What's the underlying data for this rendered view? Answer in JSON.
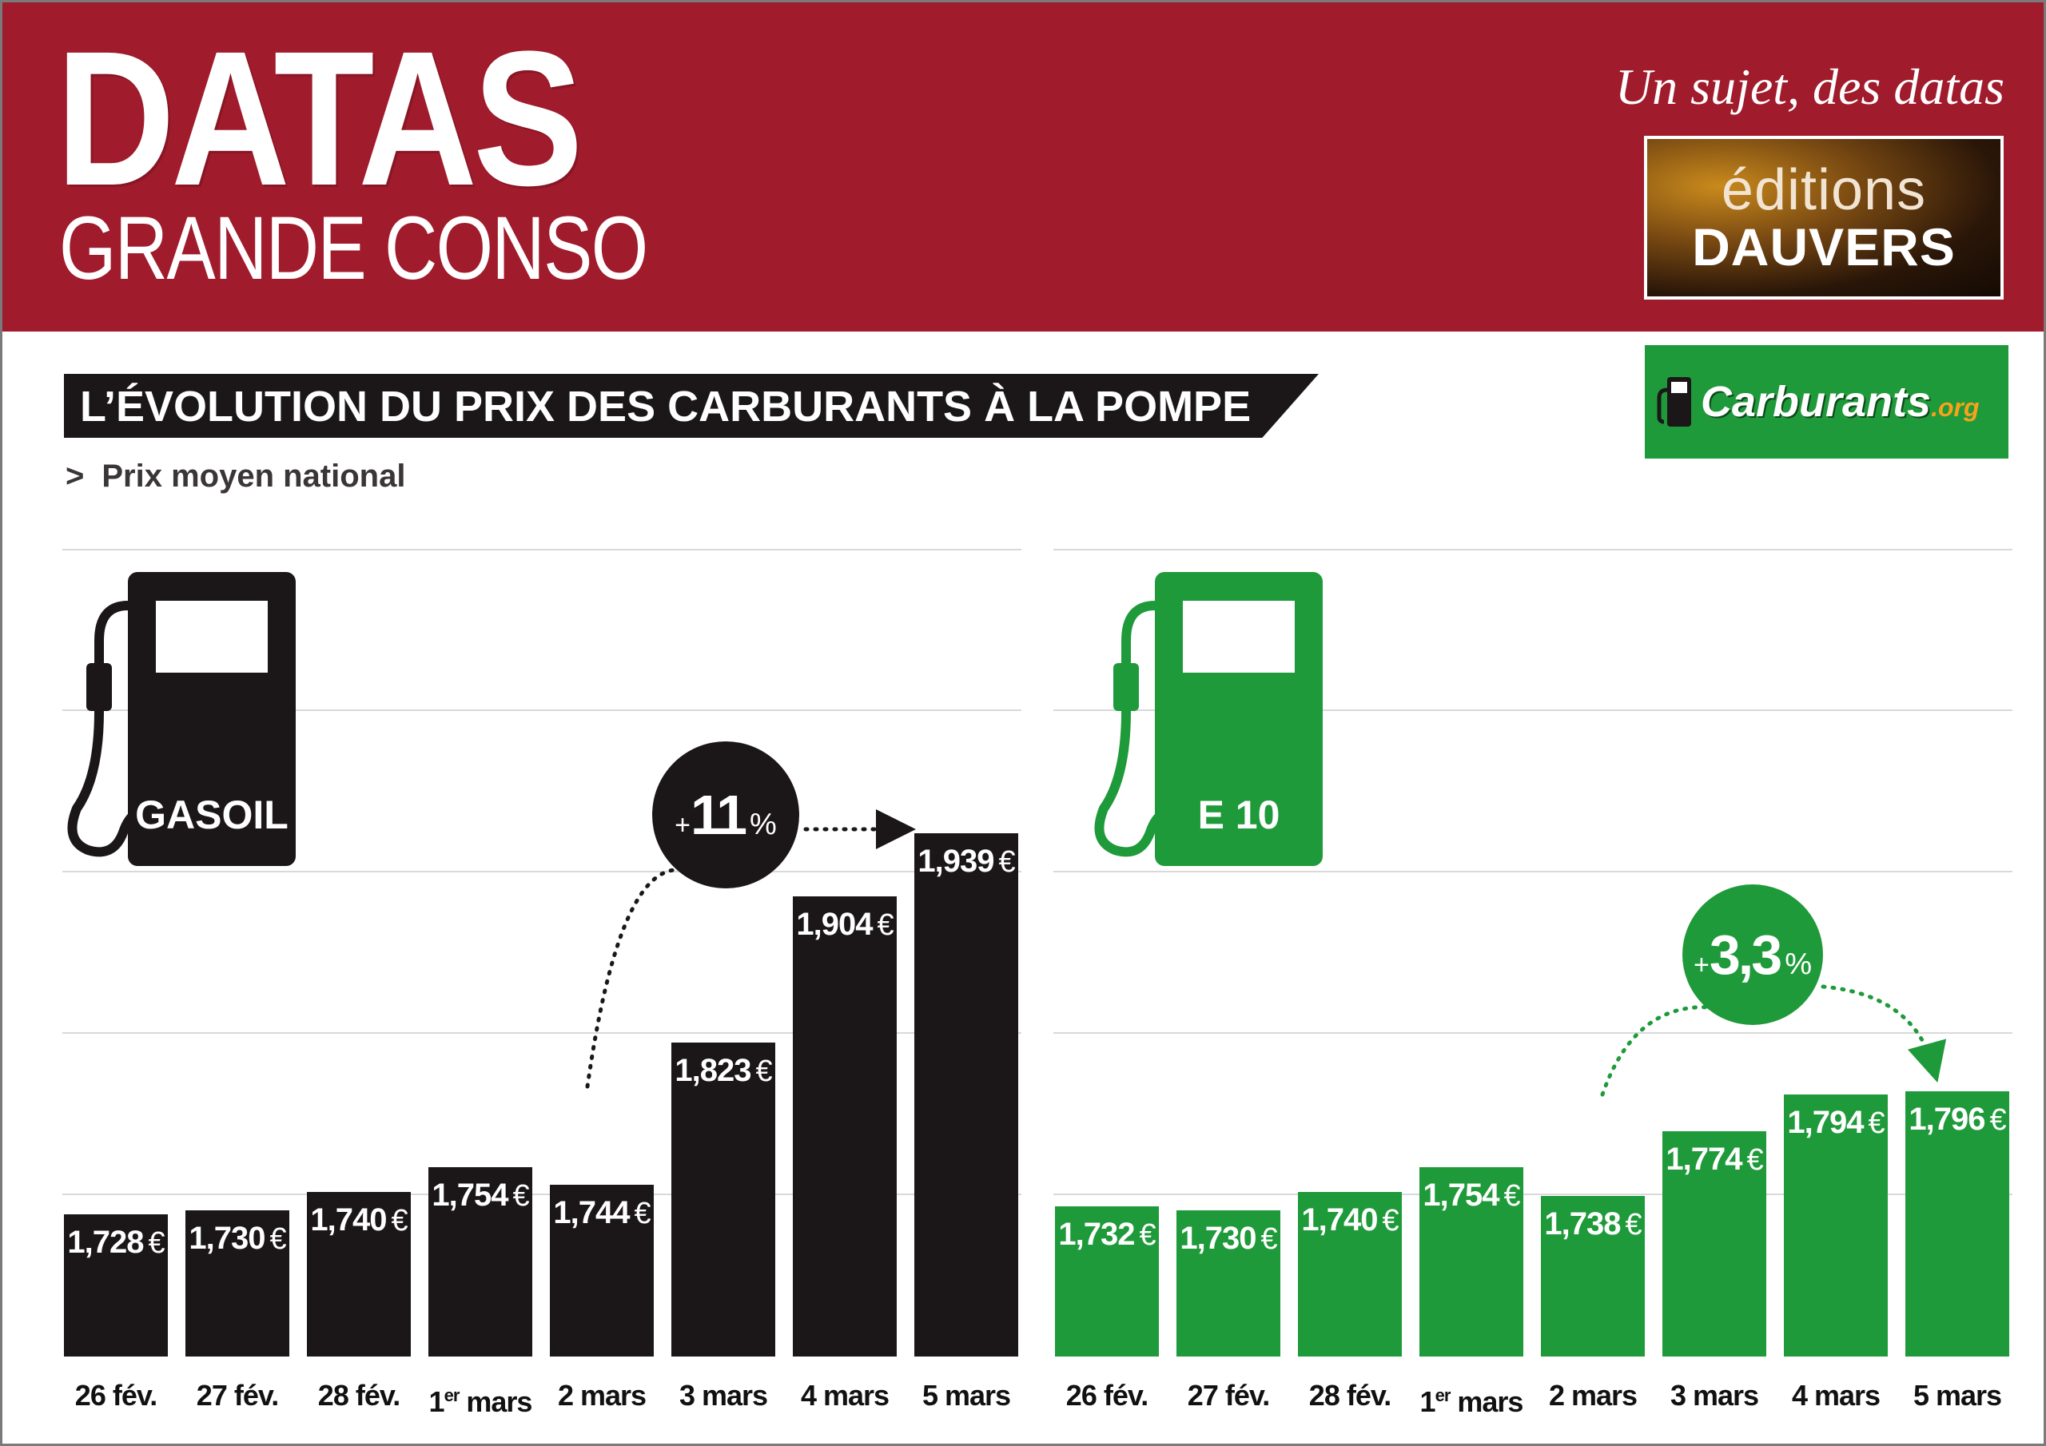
{
  "header": {
    "brand": "DATAS",
    "brand_sub": "GRANDE CONSO",
    "tagline": "Un sujet, des datas",
    "publisher_line1": "éditions",
    "publisher_line2": "DAUVERS",
    "bg_color": "#a01b2c"
  },
  "title": "L’ÉVOLUTION DU PRIX DES CARBURANTS À LA POMPE",
  "subtitle_arrow": ">",
  "subtitle": "Prix moyen national",
  "source_logo": {
    "name": "Carburants",
    "suffix": ".org",
    "color": "#1f9a3a"
  },
  "chart_data": [
    {
      "type": "bar",
      "series_name": "GASOIL",
      "color": "#1b1718",
      "categories": [
        "26 fév.",
        "27 fév.",
        "28 fév.",
        "1er mars",
        "2 mars",
        "3 mars",
        "4 mars",
        "5 mars"
      ],
      "category_parts": [
        [
          "26 fév.",
          ""
        ],
        [
          "27 fév.",
          ""
        ],
        [
          "28 fév.",
          ""
        ],
        [
          "1",
          "er",
          " mars"
        ],
        [
          "2 mars",
          ""
        ],
        [
          "3 mars",
          ""
        ],
        [
          "4 mars",
          ""
        ],
        [
          "5 mars",
          ""
        ]
      ],
      "values": [
        1.728,
        1.73,
        1.74,
        1.754,
        1.744,
        1.823,
        1.904,
        1.939
      ],
      "labels": [
        "1,728",
        "1,730",
        "1,740",
        "1,754",
        "1,744",
        "1,823",
        "1,904",
        "1,939"
      ],
      "unit": "€",
      "annotation": {
        "sign": "+",
        "value": "11",
        "unit": "%",
        "from_index": 4,
        "to_index": 7
      }
    },
    {
      "type": "bar",
      "series_name": "E 10",
      "color": "#1f9a3a",
      "categories": [
        "26 fév.",
        "27 fév.",
        "28 fév.",
        "1er mars",
        "2 mars",
        "3 mars",
        "4 mars",
        "5 mars"
      ],
      "category_parts": [
        [
          "26 fév.",
          ""
        ],
        [
          "27 fév.",
          ""
        ],
        [
          "28 fév.",
          ""
        ],
        [
          "1",
          "er",
          " mars"
        ],
        [
          "2 mars",
          ""
        ],
        [
          "3 mars",
          ""
        ],
        [
          "4 mars",
          ""
        ],
        [
          "5 mars",
          ""
        ]
      ],
      "values": [
        1.732,
        1.73,
        1.74,
        1.754,
        1.738,
        1.774,
        1.794,
        1.796
      ],
      "labels": [
        "1,732",
        "1,730",
        "1,740",
        "1,754",
        "1,738",
        "1,774",
        "1,794",
        "1,796"
      ],
      "unit": "€",
      "annotation": {
        "sign": "+",
        "value": "3,3",
        "unit": "%",
        "from_index": 4,
        "to_index": 7
      }
    }
  ]
}
